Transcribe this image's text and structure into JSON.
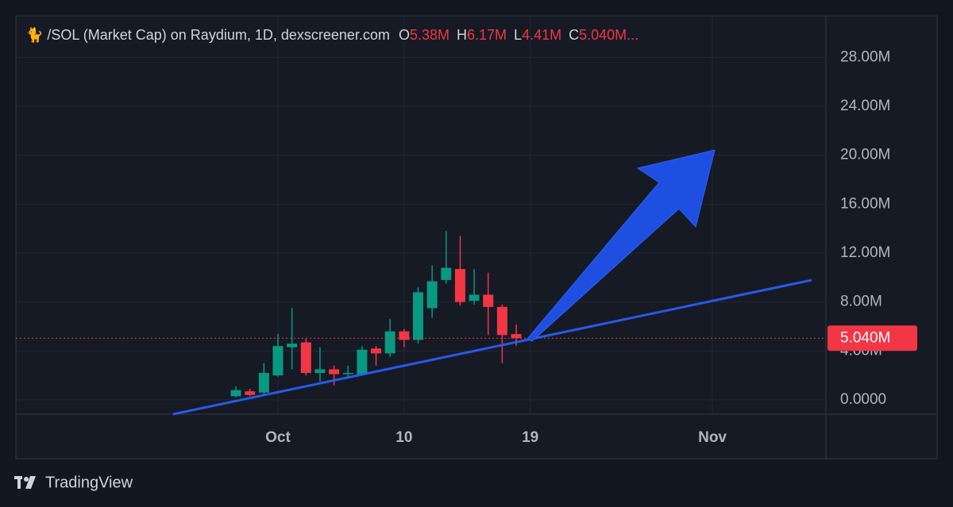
{
  "chart_data": {
    "type": "candlestick",
    "title": "🐈 /SOL (Market Cap) on Raydium, 1D, dexscreener.com",
    "ohlc_labels": [
      "O",
      "H",
      "L",
      "C"
    ],
    "ohlc_value_labels": [
      "5.38M",
      "6.17M",
      "4.41M",
      "5.040M..."
    ],
    "last_price_label": "5.040M",
    "x": [
      -3,
      -2,
      -1,
      0,
      1,
      2,
      3,
      4,
      5,
      6,
      7,
      8,
      9,
      10,
      11,
      12,
      13,
      14,
      15,
      16,
      17
    ],
    "open": [
      0.3,
      0.7,
      0.6,
      2.0,
      4.3,
      4.7,
      2.2,
      2.5,
      2.1,
      2.1,
      4.2,
      3.8,
      5.6,
      4.9,
      7.5,
      9.8,
      10.7,
      8.1,
      8.6,
      7.6,
      5.38
    ],
    "high": [
      1.1,
      0.9,
      3.0,
      5.4,
      7.5,
      5.0,
      4.3,
      2.8,
      2.8,
      4.4,
      4.4,
      6.6,
      5.8,
      9.2,
      11.0,
      13.8,
      13.4,
      10.7,
      10.4,
      7.8,
      6.17
    ],
    "low": [
      0.2,
      0.3,
      0.4,
      1.9,
      2.5,
      2.0,
      1.5,
      1.2,
      1.8,
      2.0,
      2.8,
      3.5,
      4.3,
      4.6,
      6.7,
      9.5,
      7.7,
      7.8,
      5.3,
      3.0,
      4.41
    ],
    "close": [
      0.8,
      0.4,
      2.2,
      4.4,
      4.6,
      2.2,
      2.5,
      2.1,
      2.2,
      4.1,
      3.8,
      5.6,
      4.9,
      8.8,
      9.7,
      10.8,
      8.0,
      8.6,
      7.6,
      5.3,
      5.04
    ],
    "up_color": "#089981",
    "down_color": "#f23645",
    "xlim": [
      -18.7,
      39.1
    ],
    "xticks": [
      {
        "value": 0,
        "label": "Oct"
      },
      {
        "value": 9,
        "label": "10"
      },
      {
        "value": 18,
        "label": "19"
      },
      {
        "value": 31,
        "label": "Nov"
      }
    ],
    "ylim": [
      -1.17,
      31.4
    ],
    "yticks": [
      {
        "value": 0,
        "label": "0.0000"
      },
      {
        "value": 4,
        "label": "4.00M"
      },
      {
        "value": 8,
        "label": "8.00M"
      },
      {
        "value": 12,
        "label": "12.00M"
      },
      {
        "value": 16,
        "label": "16.00M"
      },
      {
        "value": 20,
        "label": "20.00M"
      },
      {
        "value": 24,
        "label": "24.00M"
      },
      {
        "value": 28,
        "label": "28.00M"
      }
    ],
    "grid": true
  },
  "branding": "TradingView"
}
